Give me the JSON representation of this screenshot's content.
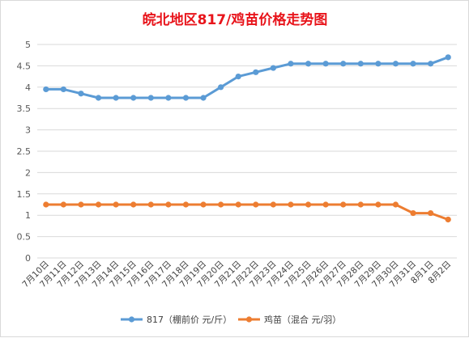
{
  "chart_data": {
    "type": "line",
    "title": "皖北地区817/鸡苗价格走势图",
    "colors": {
      "title": "#e8141b",
      "grid": "#d9d9d9",
      "axis_text": "#595959"
    },
    "categories": [
      "7月10日",
      "7月11日",
      "7月12日",
      "7月13日",
      "7月14日",
      "7月15日",
      "7月16日",
      "7月17日",
      "7月18日",
      "7月19日",
      "7月20日",
      "7月21日",
      "7月22日",
      "7月23日",
      "7月24日",
      "7月25日",
      "7月26日",
      "7月27日",
      "7月28日",
      "7月29日",
      "7月30日",
      "7月31日",
      "8月1日",
      "8月2日"
    ],
    "yticks": [
      "0",
      "0.5",
      "1",
      "1.5",
      "2",
      "2.5",
      "3",
      "3.5",
      "4",
      "4.5",
      "5"
    ],
    "ylim": [
      0,
      5
    ],
    "grid": true,
    "legend_position": "bottom",
    "series": [
      {
        "name": "817（棚前价 元/斤）",
        "color": "#5b9bd5",
        "values": [
          3.95,
          3.95,
          3.85,
          3.75,
          3.75,
          3.75,
          3.75,
          3.75,
          3.75,
          3.75,
          4.0,
          4.25,
          4.35,
          4.45,
          4.55,
          4.55,
          4.55,
          4.55,
          4.55,
          4.55,
          4.55,
          4.55,
          4.55,
          4.7
        ]
      },
      {
        "name": "鸡苗（混合 元/羽）",
        "color": "#ed7d31",
        "values": [
          1.25,
          1.25,
          1.25,
          1.25,
          1.25,
          1.25,
          1.25,
          1.25,
          1.25,
          1.25,
          1.25,
          1.25,
          1.25,
          1.25,
          1.25,
          1.25,
          1.25,
          1.25,
          1.25,
          1.25,
          1.25,
          1.05,
          1.05,
          0.9
        ]
      }
    ]
  }
}
